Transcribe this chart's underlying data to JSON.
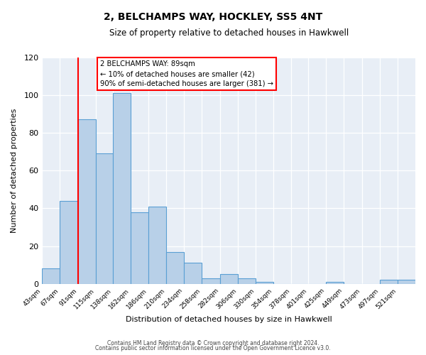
{
  "title": "2, BELCHAMPS WAY, HOCKLEY, SS5 4NT",
  "subtitle": "Size of property relative to detached houses in Hawkwell",
  "xlabel": "Distribution of detached houses by size in Hawkwell",
  "ylabel": "Number of detached properties",
  "bar_color": "#b8d0e8",
  "bar_edge_color": "#5a9fd4",
  "background_color": "#e8eef6",
  "tick_labels": [
    "43sqm",
    "67sqm",
    "91sqm",
    "115sqm",
    "138sqm",
    "162sqm",
    "186sqm",
    "210sqm",
    "234sqm",
    "258sqm",
    "282sqm",
    "306sqm",
    "330sqm",
    "354sqm",
    "378sqm",
    "401sqm",
    "425sqm",
    "449sqm",
    "473sqm",
    "497sqm",
    "521sqm"
  ],
  "bar_heights": [
    8,
    44,
    87,
    69,
    101,
    38,
    41,
    17,
    11,
    3,
    5,
    3,
    1,
    0,
    0,
    0,
    1,
    0,
    0,
    2,
    2
  ],
  "bin_edges": [
    43,
    67,
    91,
    115,
    138,
    162,
    186,
    210,
    234,
    258,
    282,
    306,
    330,
    354,
    378,
    401,
    425,
    449,
    473,
    497,
    521,
    545
  ],
  "ylim": [
    0,
    120
  ],
  "yticks": [
    0,
    20,
    40,
    60,
    80,
    100,
    120
  ],
  "red_line_x": 91,
  "annotation_text_line1": "2 BELCHAMPS WAY: 89sqm",
  "annotation_text_line2": "← 10% of detached houses are smaller (42)",
  "annotation_text_line3": "90% of semi-detached houses are larger (381) →",
  "footer_line1": "Contains HM Land Registry data © Crown copyright and database right 2024.",
  "footer_line2": "Contains public sector information licensed under the Open Government Licence v3.0."
}
